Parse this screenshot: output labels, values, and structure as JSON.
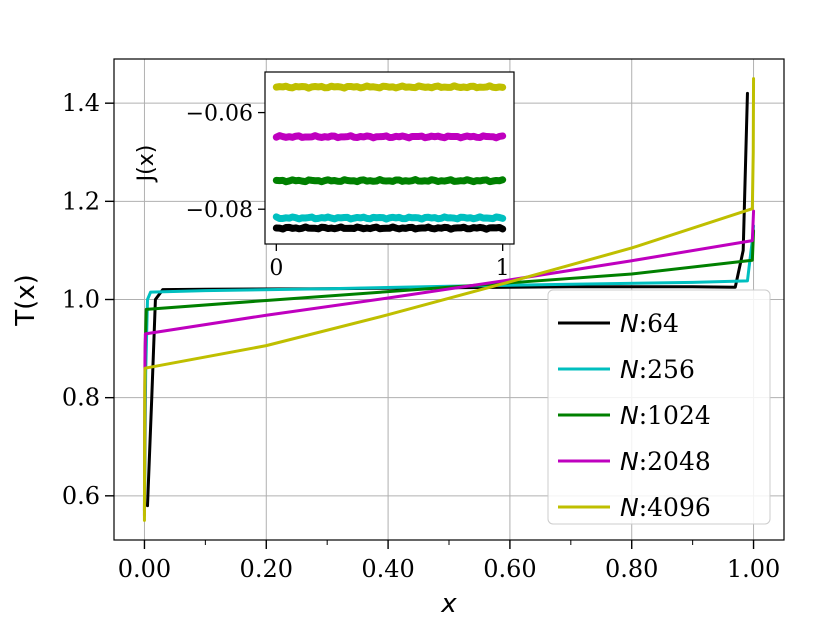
{
  "chart_data": [
    {
      "type": "line",
      "xlabel": "x",
      "ylabel": "T(x)",
      "xlim": [
        -0.05,
        1.05
      ],
      "ylim": [
        0.51,
        1.49
      ],
      "x_ticks": [
        0.0,
        0.2,
        0.4,
        0.6,
        0.8,
        1.0
      ],
      "x_tick_labels": [
        "0.00",
        "0.20",
        "0.40",
        "0.60",
        "0.80",
        "1.00"
      ],
      "x_minor_ticks": [
        0.1,
        0.3,
        0.5,
        0.7,
        0.9
      ],
      "y_ticks": [
        0.6,
        0.8,
        1.0,
        1.2,
        1.4
      ],
      "y_tick_labels": [
        "0.6",
        "0.8",
        "1.0",
        "1.2",
        "1.4"
      ],
      "grid": true,
      "legend_position": "lower-right",
      "series": [
        {
          "name": "N:64",
          "legend_prefix": "N",
          "legend_suffix": ":64",
          "color": "#000000",
          "x": [
            0.005,
            0.012,
            0.018,
            0.03,
            0.1,
            0.3,
            0.5,
            0.7,
            0.9,
            0.97,
            0.983,
            0.99
          ],
          "y": [
            0.58,
            0.8,
            1.0,
            1.02,
            1.021,
            1.022,
            1.024,
            1.026,
            1.026,
            1.025,
            1.1,
            1.42
          ]
        },
        {
          "name": "N:256",
          "legend_prefix": "N",
          "legend_suffix": ":256",
          "color": "#00bfbf",
          "x": [
            0.0,
            0.002,
            0.005,
            0.01,
            0.1,
            0.3,
            0.5,
            0.7,
            0.9,
            0.99,
            0.995,
            0.998,
            1.0
          ],
          "y": [
            0.59,
            0.85,
            1.0,
            1.015,
            1.018,
            1.022,
            1.027,
            1.031,
            1.035,
            1.038,
            1.09,
            1.12,
            1.15
          ]
        },
        {
          "name": "N:1024",
          "legend_prefix": "N",
          "legend_suffix": ":1024",
          "color": "#008000",
          "x": [
            0.0,
            0.0012,
            0.003,
            0.2,
            0.4,
            0.6,
            0.8,
            0.998,
            1.0
          ],
          "y": [
            0.57,
            0.9,
            0.98,
            0.998,
            1.016,
            1.034,
            1.052,
            1.08,
            1.14
          ]
        },
        {
          "name": "N:2048",
          "legend_prefix": "N",
          "legend_suffix": ":2048",
          "color": "#bf00bf",
          "x": [
            0.0,
            0.0008,
            0.0015,
            0.2,
            0.4,
            0.6,
            0.8,
            0.998,
            1.0
          ],
          "y": [
            0.56,
            0.88,
            0.93,
            0.968,
            1.003,
            1.04,
            1.079,
            1.12,
            1.18
          ]
        },
        {
          "name": "N:4096",
          "legend_prefix": "N",
          "legend_suffix": ":4096",
          "color": "#bfbf00",
          "x": [
            0.0,
            0.0005,
            0.001,
            0.2,
            0.4,
            0.6,
            0.8,
            0.998,
            0.9995,
            1.0
          ],
          "y": [
            0.55,
            0.82,
            0.86,
            0.906,
            0.969,
            1.036,
            1.105,
            1.185,
            1.3,
            1.45
          ]
        }
      ]
    },
    {
      "type": "line",
      "role": "inset",
      "ylabel": "J(x)",
      "xlim": [
        -0.05,
        1.05
      ],
      "ylim": [
        -0.0872,
        -0.0516
      ],
      "x_ticks": [
        0,
        1
      ],
      "x_tick_labels": [
        "0",
        "1"
      ],
      "y_ticks": [
        -0.06,
        -0.08
      ],
      "y_tick_labels": [
        "−0.06",
        "−0.08"
      ],
      "grid": false,
      "series": [
        {
          "name": "N:64",
          "color": "#000000",
          "x": [
            0,
            1
          ],
          "y": [
            -0.0839,
            -0.0839
          ]
        },
        {
          "name": "N:256",
          "color": "#00bfbf",
          "x": [
            0,
            1
          ],
          "y": [
            -0.0818,
            -0.0818
          ]
        },
        {
          "name": "N:1024",
          "color": "#008000",
          "x": [
            0,
            1
          ],
          "y": [
            -0.0741,
            -0.0741
          ]
        },
        {
          "name": "N:2048",
          "color": "#bf00bf",
          "x": [
            0,
            1
          ],
          "y": [
            -0.065,
            -0.065
          ]
        },
        {
          "name": "N:4096",
          "color": "#bfbf00",
          "x": [
            0,
            1
          ],
          "y": [
            -0.0547,
            -0.0547
          ]
        }
      ]
    }
  ]
}
